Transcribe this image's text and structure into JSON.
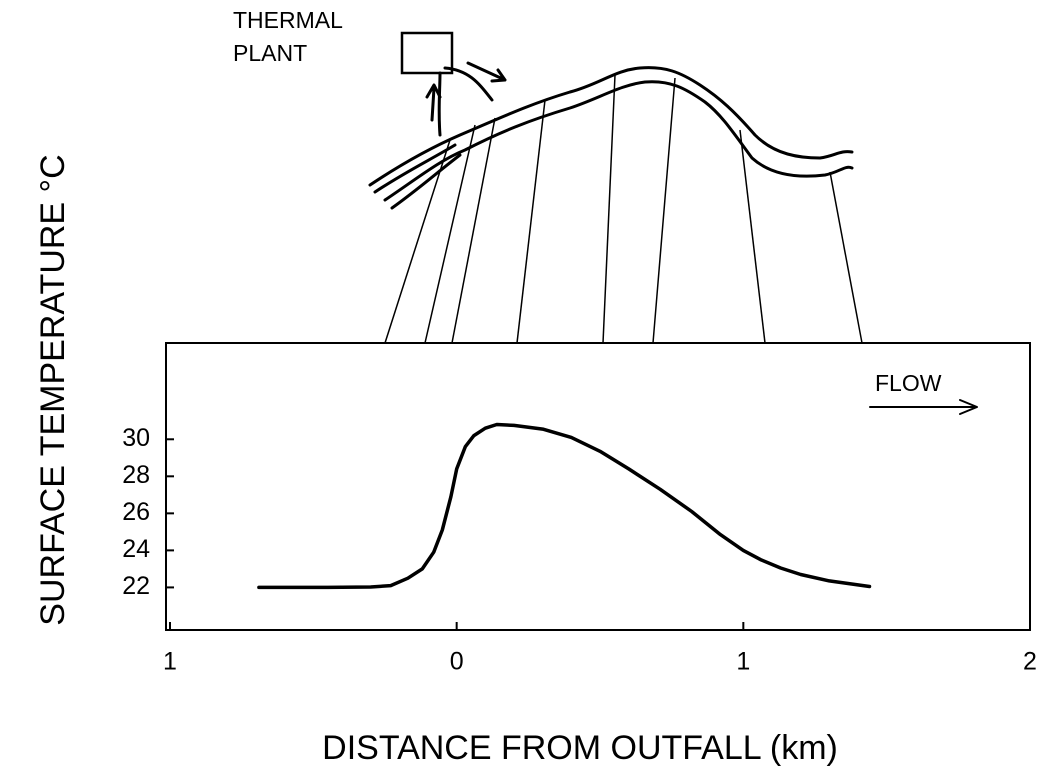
{
  "chart_data": {
    "type": "line",
    "ylabel": "SURFACE TEMPERATURE °C",
    "xlabel": "DISTANCE FROM OUTFALL (km)",
    "plant_label": [
      "THERMAL",
      "PLANT"
    ],
    "flow_label": "FLOW",
    "x": [
      -0.69,
      -0.45,
      -0.3,
      -0.23,
      -0.17,
      -0.12,
      -0.08,
      -0.05,
      -0.02,
      0,
      0.03,
      0.06,
      0.1,
      0.14,
      0.2,
      0.3,
      0.4,
      0.5,
      0.6,
      0.71,
      0.82,
      0.92,
      1.0,
      1.06,
      1.13,
      1.2,
      1.3,
      1.44
    ],
    "values": [
      22,
      22,
      22.02,
      22.1,
      22.5,
      23.0,
      23.9,
      25.1,
      26.9,
      28.4,
      29.6,
      30.2,
      30.6,
      30.8,
      30.75,
      30.55,
      30.1,
      29.35,
      28.4,
      27.3,
      26.1,
      24.85,
      24.0,
      23.5,
      23.05,
      22.7,
      22.35,
      22.05
    ],
    "color": "#000000",
    "xlim": [
      -1,
      2
    ],
    "xticks": [
      {
        "value": -1,
        "label": "1"
      },
      0,
      1,
      2
    ],
    "ylim": [
      19.7,
      35.2
    ],
    "yticks": [
      22,
      24,
      26,
      28,
      30
    ],
    "grid": false
  }
}
